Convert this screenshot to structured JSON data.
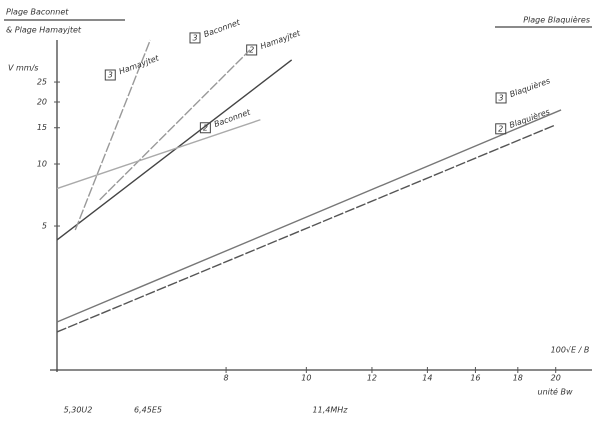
{
  "chart_data": {
    "type": "line",
    "title": "Plage Baconnet",
    "subtitle": "& Plage Hamayjtet",
    "title_right": "Plage Blaquières",
    "y_label": "V mm/s",
    "x_label": "100√E / B",
    "x_unit": "unité Bw",
    "xscale": "log",
    "yscale": "log",
    "xlim": [
      5,
      22
    ],
    "ylim": [
      1,
      40
    ],
    "xticks": [
      8,
      10,
      12,
      14,
      16,
      18,
      20
    ],
    "yticks": [
      5,
      10,
      15,
      20,
      25
    ],
    "annotations": [
      "5,30U2",
      "6,45E5",
      "11,4MHz"
    ],
    "series": [
      {
        "name": "Blaquières",
        "tag": "3",
        "color": "#777",
        "x": [
          5.0,
          20.3
        ],
        "values": [
          1.71,
          18.3
        ]
      },
      {
        "name": "Blaquières",
        "tag": "2",
        "color": "#555",
        "x": [
          5.0,
          20.0
        ],
        "values": [
          1.53,
          15.5
        ]
      },
      {
        "name": "Hamayjtet",
        "tag": "2",
        "color": "#444",
        "x": [
          5.0,
          9.6
        ],
        "values": [
          4.28,
          32
        ]
      },
      {
        "name": "Baconnet",
        "tag": "3",
        "color": "#999",
        "x": [
          5.63,
          8.55
        ],
        "values": [
          6.7,
          35.8
        ]
      },
      {
        "name": "Baconnet",
        "tag": "2",
        "color": "#aaa",
        "x": [
          5.0,
          8.8
        ],
        "values": [
          7.6,
          16.4
        ]
      },
      {
        "name": "Hamayjtet",
        "tag": "3",
        "color": "#999",
        "x": [
          5.26,
          6.48
        ],
        "values": [
          4.78,
          40
        ]
      }
    ]
  }
}
